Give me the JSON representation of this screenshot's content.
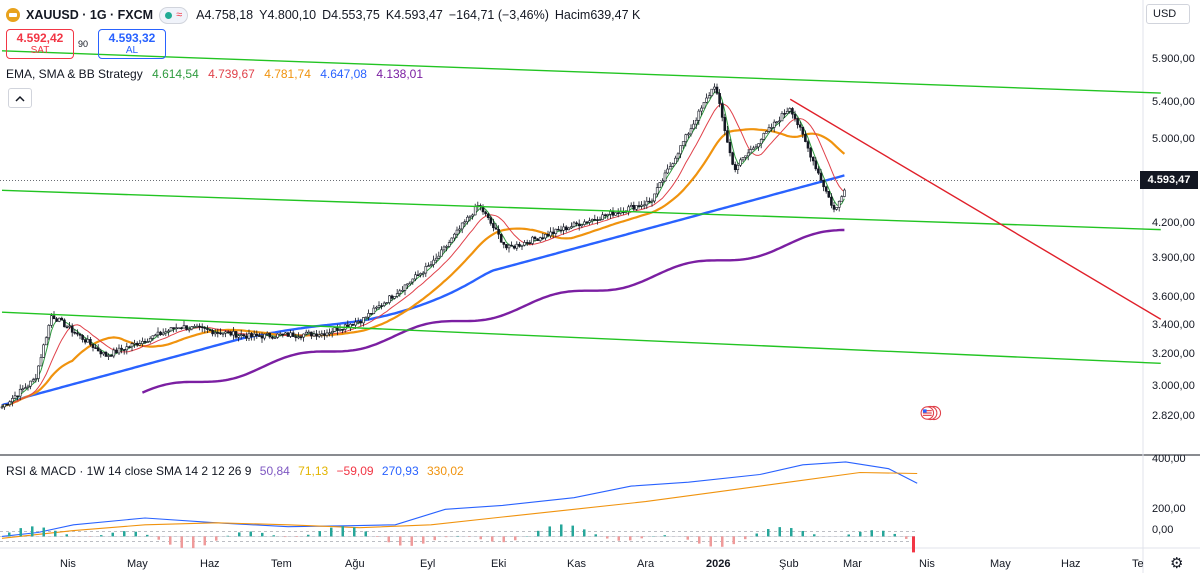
{
  "header": {
    "symbol": "XAUUSD",
    "interval": "1G",
    "exchange": "FXCM",
    "title": "XAUUSD · 1G · FXCM",
    "open": "A4.758,18",
    "high": "Y4.800,10",
    "low": "D4.553,75",
    "close": "K4.593,47",
    "change": "−164,71 (−3,46%)",
    "volume": "Hacim639,47 K"
  },
  "trade": {
    "sell_price": "4.592,42",
    "sell_label": "SAT",
    "spread": "90",
    "buy_price": "4.593,32",
    "buy_label": "AL"
  },
  "currency": "USD",
  "indicator_main": {
    "name": "EMA, SMA & BB Strategy",
    "values": [
      {
        "text": "4.614,54",
        "color": "#2e9b3e"
      },
      {
        "text": "4.739,67",
        "color": "#e0414a"
      },
      {
        "text": "4.781,74",
        "color": "#f0930e"
      },
      {
        "text": "4.647,08",
        "color": "#2962ff"
      },
      {
        "text": "4.138,01",
        "color": "#7b1fa2"
      }
    ]
  },
  "indicator_sub": {
    "name": "RSI & MACD · 1W 14 close SMA 14 2 12 26 9",
    "values": [
      {
        "text": "50,84",
        "color": "#7e57c2"
      },
      {
        "text": "71,13",
        "color": "#f7c600"
      },
      {
        "text": "−59,09",
        "color": "#f23645"
      },
      {
        "text": "270,93",
        "color": "#2962ff"
      },
      {
        "text": "330,02",
        "color": "#f0930e"
      }
    ]
  },
  "price_axis_labels": [
    "5.900,00",
    "5.400,00",
    "5.000,00",
    "4.200,00",
    "3.900,00",
    "3.600,00",
    "3.400,00",
    "3.200,00",
    "3.000,00",
    "2.820,00"
  ],
  "current_price_tag": "4.593,47",
  "sub_axis_labels": [
    "400,00",
    "200,00",
    "0,00"
  ],
  "time_labels": [
    "Nis",
    "May",
    "Haz",
    "Tem",
    "Ağu",
    "Eyl",
    "Eki",
    "Kas",
    "Ara",
    "2026",
    "Şub",
    "Mar",
    "Nis",
    "May",
    "Haz",
    "Te"
  ],
  "icons": [
    "gold-coin-icon",
    "chevron-up-icon",
    "us-flag-icon",
    "gear-icon"
  ],
  "chart_data": [
    {
      "type": "candlestick",
      "title": "XAUUSD · 1G · FXCM",
      "y_scale": "log",
      "ylim": [
        2800,
        6100
      ],
      "x_period": [
        "2025-04",
        "2026-08"
      ],
      "approx_close_path": [
        {
          "date": "2025-04-01",
          "price": 2880
        },
        {
          "date": "2025-04-15",
          "price": 3050
        },
        {
          "date": "2025-04-22",
          "price": 3480
        },
        {
          "date": "2025-05-15",
          "price": 3200
        },
        {
          "date": "2025-06-15",
          "price": 3400
        },
        {
          "date": "2025-07-15",
          "price": 3330
        },
        {
          "date": "2025-08-15",
          "price": 3350
        },
        {
          "date": "2025-09-01",
          "price": 3450
        },
        {
          "date": "2025-10-01",
          "price": 3880
        },
        {
          "date": "2025-10-20",
          "price": 4370
        },
        {
          "date": "2025-11-01",
          "price": 3990
        },
        {
          "date": "2025-12-01",
          "price": 4200
        },
        {
          "date": "2026-01-01",
          "price": 4400
        },
        {
          "date": "2026-01-28",
          "price": 5600
        },
        {
          "date": "2026-02-05",
          "price": 4700
        },
        {
          "date": "2026-03-01",
          "price": 5350
        },
        {
          "date": "2026-03-20",
          "price": 4300
        },
        {
          "date": "2026-03-25",
          "price": 4593.47
        }
      ],
      "series": [
        {
          "name": "EMA (green)",
          "last": 4614.54
        },
        {
          "name": "SMA (red)",
          "last": 4739.67
        },
        {
          "name": "SMA (orange)",
          "last": 4781.74
        },
        {
          "name": "SMA (blue)",
          "last": 4647.08
        },
        {
          "name": "SMA (purple)",
          "last": 4138.01
        }
      ],
      "trendlines": [
        {
          "color": "green",
          "from": {
            "date": "2025-04-01",
            "price": 6000
          },
          "to": {
            "date": "2026-08-05",
            "price": 5500
          }
        },
        {
          "color": "green",
          "from": {
            "date": "2025-04-01",
            "price": 4500
          },
          "to": {
            "date": "2026-08-05",
            "price": 4150
          }
        },
        {
          "color": "green",
          "from": {
            "date": "2025-04-01",
            "price": 3500
          },
          "to": {
            "date": "2026-08-05",
            "price": 3150
          }
        },
        {
          "color": "red",
          "from": {
            "date": "2026-03-01",
            "price": 5430
          },
          "to": {
            "date": "2026-08-05",
            "price": 3450
          }
        }
      ]
    },
    {
      "type": "line",
      "title": "RSI & MACD · 1W 14 close SMA 14 2 12 26 9",
      "ylim": [
        -60,
        400
      ],
      "series": [
        {
          "name": "270,93",
          "color": "#2962ff",
          "points": [
            [
              0,
              0
            ],
            [
              0.05,
              20
            ],
            [
              0.1,
              60
            ],
            [
              0.2,
              95
            ],
            [
              0.3,
              70
            ],
            [
              0.4,
              50
            ],
            [
              0.48,
              55
            ],
            [
              0.55,
              60
            ],
            [
              0.62,
              140
            ],
            [
              0.7,
              160
            ],
            [
              0.8,
              200
            ],
            [
              0.88,
              260
            ],
            [
              0.96,
              280
            ],
            [
              1.06,
              320
            ],
            [
              1.12,
              370
            ],
            [
              1.18,
              385
            ],
            [
              1.24,
              350
            ],
            [
              1.28,
              275
            ]
          ]
        },
        {
          "name": "330,02",
          "color": "#f0930e",
          "points": [
            [
              0,
              -10
            ],
            [
              0.1,
              30
            ],
            [
              0.2,
              60
            ],
            [
              0.3,
              70
            ],
            [
              0.4,
              60
            ],
            [
              0.5,
              45
            ],
            [
              0.6,
              60
            ],
            [
              0.7,
              100
            ],
            [
              0.8,
              140
            ],
            [
              0.9,
              180
            ],
            [
              1.0,
              230
            ],
            [
              1.1,
              280
            ],
            [
              1.2,
              330
            ],
            [
              1.28,
              325
            ]
          ]
        }
      ]
    }
  ]
}
